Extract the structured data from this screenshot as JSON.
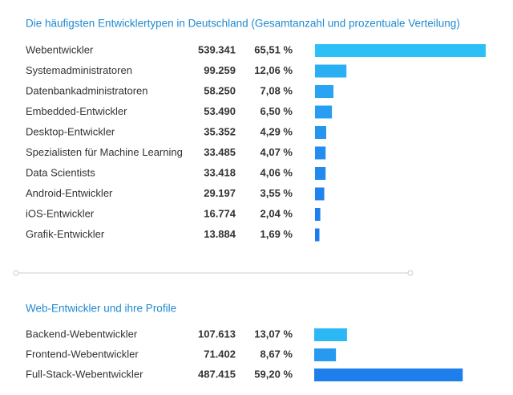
{
  "chart_data": [
    {
      "type": "bar",
      "title": "Die häufigsten Entwicklertypen in Deutschland (Gesamtanzahl und prozentuale Verteilung)",
      "categories": [
        "Webentwickler",
        "Systemadministratoren",
        "Datenbankadministratoren",
        "Embedded-Entwickler",
        "Desktop-Entwickler",
        "Spezialisten für Machine Learning",
        "Data Scientists",
        "Android-Entwickler",
        "iOS-Entwickler",
        "Grafik-Entwickler"
      ],
      "counts": [
        539341,
        99259,
        58250,
        53490,
        35352,
        33485,
        33418,
        29197,
        16774,
        13884
      ],
      "count_labels": [
        "539.341",
        "99.259",
        "58.250",
        "53.490",
        "35.352",
        "33.485",
        "33.418",
        "29.197",
        "16.774",
        "13.884"
      ],
      "values": [
        65.51,
        12.06,
        7.08,
        6.5,
        4.29,
        4.07,
        4.06,
        3.55,
        2.04,
        1.69
      ],
      "value_labels": [
        "65,51 %",
        "12,06 %",
        "7,08 %",
        "6,50 %",
        "4,29 %",
        "4,07 %",
        "4,06 %",
        "3,55 %",
        "2,04 %",
        "1,69 %"
      ],
      "colors": [
        "#2cc0f6",
        "#2aaef4",
        "#29a4f3",
        "#289ef2",
        "#2595f0",
        "#238ef0",
        "#2289ef",
        "#2084ee",
        "#1e80ed",
        "#1d7cec"
      ]
    },
    {
      "type": "bar",
      "title": "Web-Entwickler und ihre Profile",
      "categories": [
        "Backend-Webentwickler",
        "Frontend-Webentwickler",
        "Full-Stack-Webentwickler"
      ],
      "counts": [
        107613,
        71402,
        487415
      ],
      "count_labels": [
        "107.613",
        "71.402",
        "487.415"
      ],
      "values": [
        13.07,
        8.67,
        59.2
      ],
      "value_labels": [
        "13,07 %",
        "8,67 %",
        "59,20 %"
      ],
      "colors": [
        "#2cb8f5",
        "#2799f1",
        "#1d7eec"
      ]
    }
  ]
}
